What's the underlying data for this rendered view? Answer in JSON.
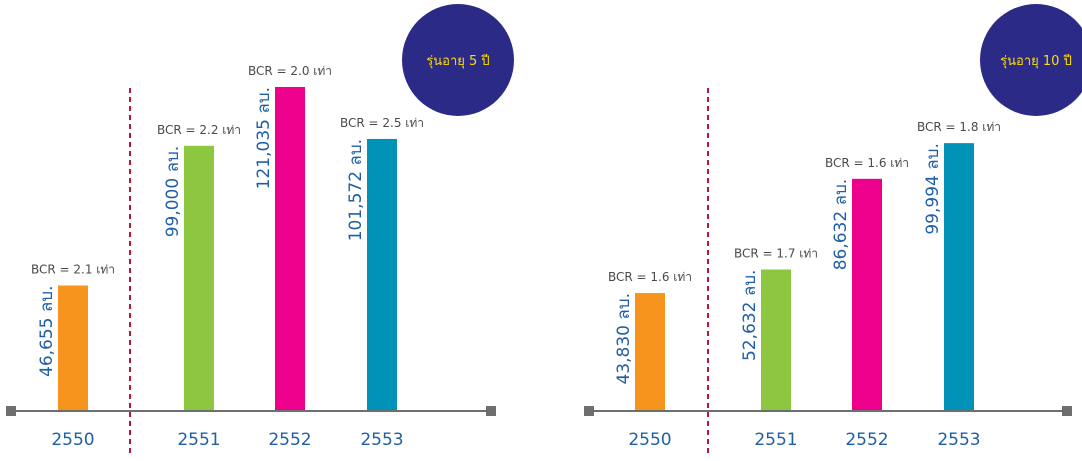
{
  "colors": {
    "axis": "#6d6e70",
    "divider": "#b5173a",
    "label": "#1f5fa8",
    "badge_bg": "#2b2a86",
    "badge_text": "#ffde00",
    "bcr_text": "#4a4a4a"
  },
  "chart_data": [
    {
      "type": "bar",
      "badge": "รุ่นอายุ 5 ปี",
      "categories": [
        "2550",
        "2551",
        "2552",
        "2553"
      ],
      "values": [
        46655,
        99000,
        121035,
        101572
      ],
      "value_labels": [
        "46,655 ลบ.",
        "99,000 ลบ.",
        "121,035 ลบ.",
        "101,572 ลบ."
      ],
      "bcr_labels": [
        "BCR = 2.1 เท่า",
        "BCR = 2.2 เท่า",
        "BCR = 2.0 เท่า",
        "BCR = 2.5 เท่า"
      ],
      "bar_colors": [
        "#f7941d",
        "#8dc63f",
        "#ec008c",
        "#0093b7"
      ],
      "ylim": [
        0,
        121035
      ],
      "grid": false,
      "divider_after_index": 0
    },
    {
      "type": "bar",
      "badge": "รุ่นอายุ 10 ปี",
      "categories": [
        "2550",
        "2551",
        "2552",
        "2553"
      ],
      "values": [
        43830,
        52632,
        86632,
        99994
      ],
      "value_labels": [
        "43,830 ลบ.",
        "52,632 ลบ.",
        "86,632 ลบ.",
        "99,994 ลบ."
      ],
      "bcr_labels": [
        "BCR = 1.6 เท่า",
        "BCR = 1.7 เท่า",
        "BCR = 1.6 เท่า",
        "BCR = 1.8 เท่า"
      ],
      "bar_colors": [
        "#f7941d",
        "#8dc63f",
        "#ec008c",
        "#0093b7"
      ],
      "ylim": [
        0,
        121035
      ],
      "grid": false,
      "divider_after_index": 0
    }
  ]
}
